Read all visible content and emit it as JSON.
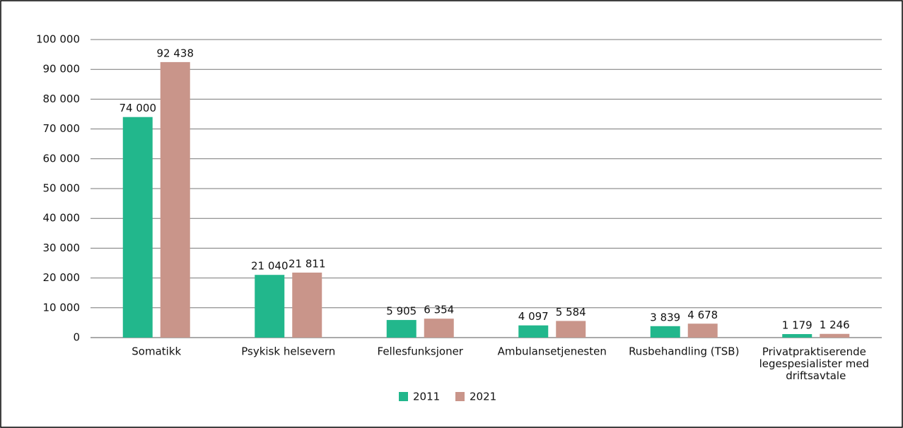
{
  "chart_data": {
    "type": "bar",
    "categories": [
      "Somatikk",
      "Psykisk helsevern",
      "Fellesfunksjoner",
      "Ambulansetjenesten",
      "Rusbehandling (TSB)",
      "Privatpraktiserende legespesialister med driftsavtale"
    ],
    "series": [
      {
        "name": "2011",
        "color": "#22b78c",
        "values": [
          74000,
          21040,
          5905,
          4097,
          3839,
          1179
        ],
        "value_labels": [
          "74 000",
          "21 040",
          "5 905",
          "4 097",
          "3 839",
          "1 179"
        ]
      },
      {
        "name": "2021",
        "color": "#c9958a",
        "values": [
          92438,
          21811,
          6354,
          5584,
          4678,
          1246
        ],
        "value_labels": [
          "92 438",
          "21 811",
          "6 354",
          "5 584",
          "4 678",
          "1 246"
        ]
      }
    ],
    "ylim": [
      0,
      100000
    ],
    "yticks": [
      0,
      {
        "value": 10000,
        "label": "10 000"
      },
      {
        "value": 20000,
        "label": "20 000"
      },
      {
        "value": 30000,
        "label": "30 000"
      },
      {
        "value": 40000,
        "label": "40 000"
      },
      {
        "value": 50000,
        "label": "50 000"
      },
      {
        "value": 60000,
        "label": "60 000"
      },
      {
        "value": 70000,
        "label": "70 000"
      },
      {
        "value": 80000,
        "label": "80 000"
      },
      {
        "value": 90000,
        "label": "90 000"
      },
      {
        "value": 100000,
        "label": "100 000"
      }
    ],
    "grid": true,
    "legend": "bottom"
  }
}
